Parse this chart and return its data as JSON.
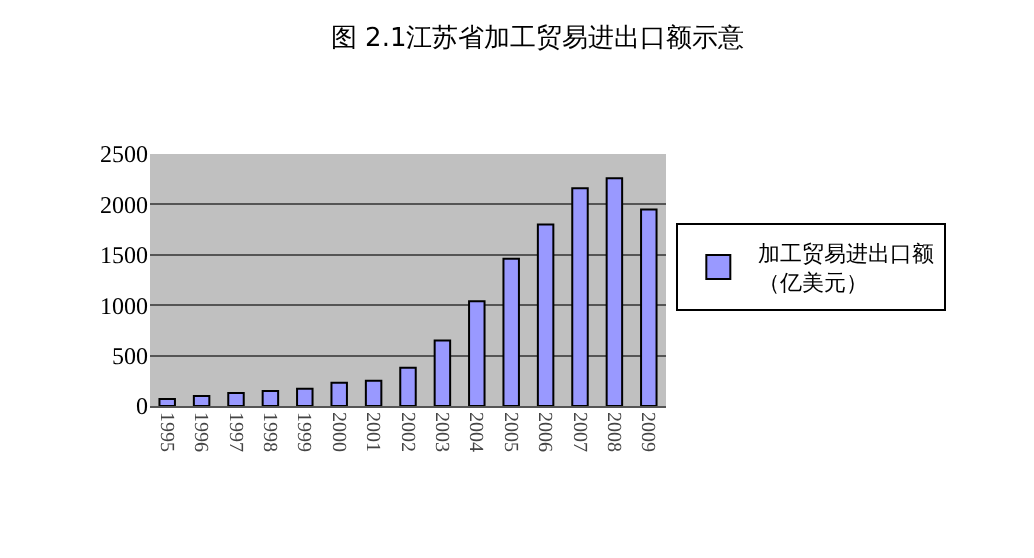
{
  "chart_data": {
    "type": "bar",
    "title": "图 2.1江苏省加工贸易进出口额示意",
    "categories": [
      "1995",
      "1996",
      "1997",
      "1998",
      "1999",
      "2000",
      "2001",
      "2002",
      "2003",
      "2004",
      "2005",
      "2006",
      "2007",
      "2008",
      "2009"
    ],
    "series": [
      {
        "name": "加工贸易进出口额（亿美元）",
        "color": "#9999ff",
        "values": [
          70,
          100,
          130,
          150,
          170,
          230,
          250,
          380,
          650,
          1040,
          1460,
          1800,
          2160,
          2260,
          1950
        ]
      }
    ],
    "ylim": [
      0,
      2500
    ],
    "yticks": [
      0,
      500,
      1000,
      1500,
      2000,
      2500
    ],
    "grid": "y",
    "legend": "right"
  }
}
